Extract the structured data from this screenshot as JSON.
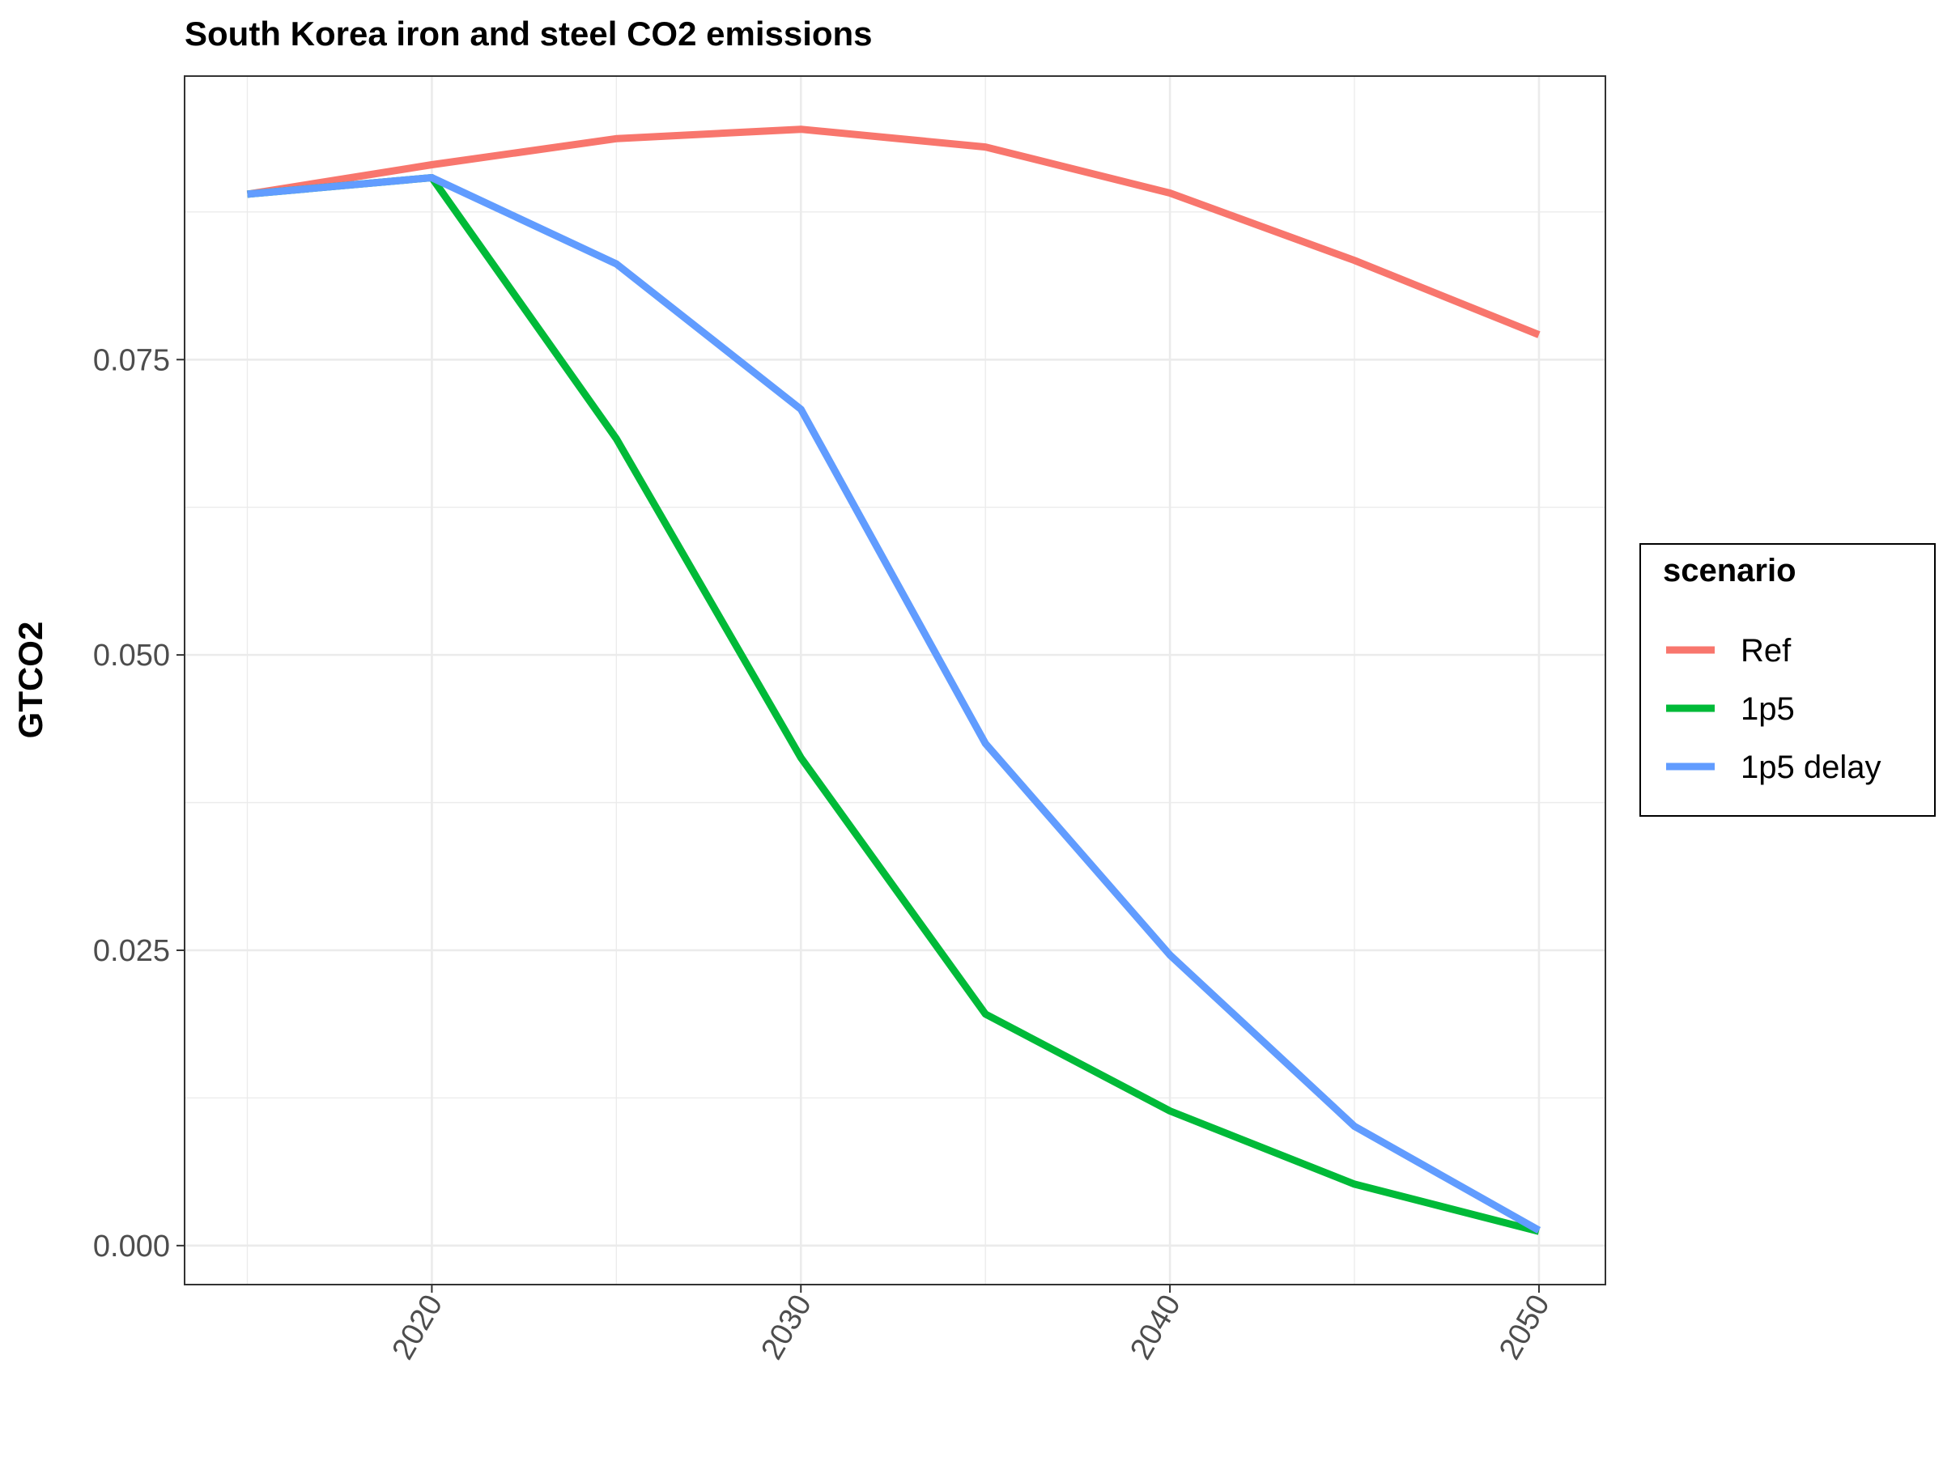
{
  "chart_data": {
    "type": "line",
    "title": "South Korea iron and steel CO2 emissions",
    "xlabel": "",
    "ylabel": "GTCO2",
    "x": [
      2015,
      2020,
      2025,
      2030,
      2035,
      2040,
      2045,
      2050
    ],
    "x_ticks": [
      2020,
      2030,
      2040,
      2050
    ],
    "y_ticks": [
      0.0,
      0.025,
      0.05,
      0.075
    ],
    "y_tick_labels": [
      "0.000",
      "0.025",
      "0.050",
      "0.075"
    ],
    "xlim": [
      2013.3,
      2051.8
    ],
    "ylim": [
      -0.0033,
      0.099
    ],
    "grid": true,
    "legend": {
      "title": "scenario",
      "position": "right"
    },
    "series": [
      {
        "name": "Ref",
        "color": "#F8766D",
        "values": [
          0.089,
          0.0915,
          0.0937,
          0.0945,
          0.093,
          0.0891,
          0.0834,
          0.0771
        ]
      },
      {
        "name": "1p5",
        "color": "#00BA38",
        "values": [
          0.089,
          0.0904,
          0.0683,
          0.0413,
          0.0196,
          0.0114,
          0.0052,
          0.0012
        ]
      },
      {
        "name": "1p5 delay",
        "color": "#619CFF",
        "values": [
          0.089,
          0.0904,
          0.0831,
          0.0708,
          0.0425,
          0.0246,
          0.0101,
          0.0013
        ]
      }
    ]
  }
}
